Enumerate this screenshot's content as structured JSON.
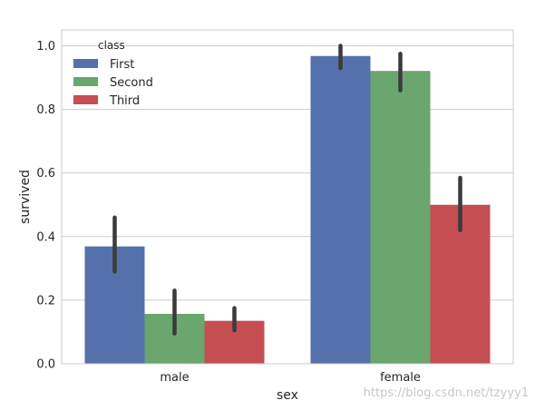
{
  "chart_data": {
    "type": "bar",
    "categories": [
      "male",
      "female"
    ],
    "series": [
      {
        "name": "First",
        "values": [
          0.369,
          0.968
        ],
        "ci": [
          [
            0.29,
            0.46
          ],
          [
            0.93,
            1.0
          ]
        ]
      },
      {
        "name": "Second",
        "values": [
          0.157,
          0.921
        ],
        "ci": [
          [
            0.095,
            0.23
          ],
          [
            0.86,
            0.975
          ]
        ]
      },
      {
        "name": "Third",
        "values": [
          0.135,
          0.5
        ],
        "ci": [
          [
            0.105,
            0.175
          ],
          [
            0.42,
            0.585
          ]
        ]
      }
    ],
    "xlabel": "sex",
    "ylabel": "survived",
    "ylim": [
      0.0,
      1.05
    ],
    "yticks": [
      "0.0",
      "0.2",
      "0.4",
      "0.6",
      "0.8",
      "1.0"
    ],
    "ytick_values": [
      0.0,
      0.2,
      0.4,
      0.6,
      0.8,
      1.0
    ],
    "legend": {
      "title": "class",
      "placement": "top-left"
    },
    "grid": "horizontal",
    "colors": [
      "#5471ab",
      "#6aa66e",
      "#c44e52"
    ],
    "errorbar_color": "#3b3b3b"
  },
  "watermark": "https://blog.csdn.net/tzyyy1"
}
